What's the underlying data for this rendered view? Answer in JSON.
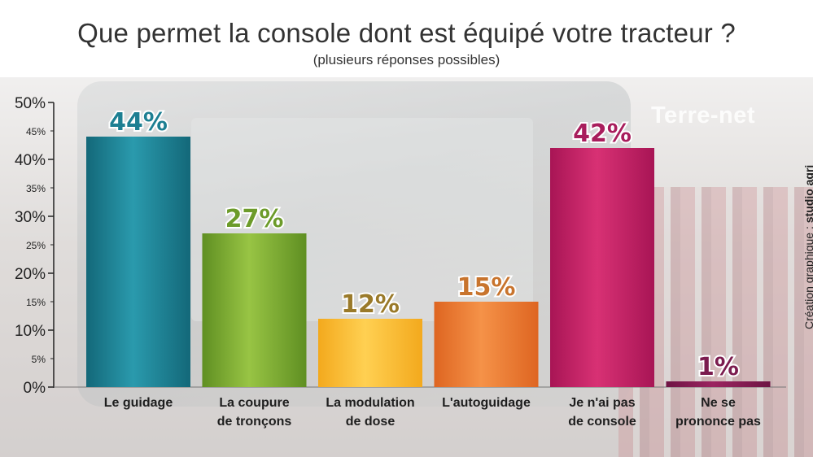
{
  "header": {
    "title": "Que permet la console dont est équipé votre tracteur ?",
    "subtitle": "(plusieurs réponses possibles)"
  },
  "brand": {
    "logo_text": "Terre-net",
    "credit_prefix": "Création graphique : ",
    "credit_name": "studio agri"
  },
  "chart_data": {
    "type": "bar",
    "title": "Que permet la console dont est équipé votre tracteur ?",
    "subtitle": "(plusieurs réponses possibles)",
    "categories": [
      [
        "Le guidage"
      ],
      [
        "La coupure",
        "de tronçons"
      ],
      [
        "La modulation",
        "de dose"
      ],
      [
        "L'autoguidage"
      ],
      [
        "Je n'ai pas",
        "de console"
      ],
      [
        "Ne se",
        "prononce pas"
      ]
    ],
    "values": [
      44,
      27,
      12,
      15,
      42,
      1
    ],
    "value_labels": [
      "44%",
      "27%",
      "12%",
      "15%",
      "42%",
      "1%"
    ],
    "ylim": [
      0,
      50
    ],
    "major_ticks": [
      {
        "v": 0,
        "label": "0%"
      },
      {
        "v": 10,
        "label": "10%"
      },
      {
        "v": 20,
        "label": "20%"
      },
      {
        "v": 30,
        "label": "30%"
      },
      {
        "v": 40,
        "label": "40%"
      },
      {
        "v": 50,
        "label": "50%"
      }
    ],
    "minor_ticks": [
      {
        "v": 5,
        "label": "5%"
      },
      {
        "v": 15,
        "label": "15%"
      },
      {
        "v": 25,
        "label": "25%"
      },
      {
        "v": 35,
        "label": "35%"
      },
      {
        "v": 45,
        "label": "45%"
      }
    ],
    "bar_colors": [
      [
        "#2a9aad",
        "#136879"
      ],
      [
        "#98c444",
        "#5f8f22"
      ],
      [
        "#ffd052",
        "#f3a91d"
      ],
      [
        "#f59248",
        "#de6521"
      ],
      [
        "#d83174",
        "#a81555"
      ],
      [
        "#9b2460",
        "#6e1444"
      ]
    ],
    "label_colors": [
      "#1d7f92",
      "#6c9b2a",
      "#9a7a2a",
      "#c8742d",
      "#a81d5c",
      "#7b1c4f"
    ],
    "grid": false,
    "legend": "none"
  }
}
